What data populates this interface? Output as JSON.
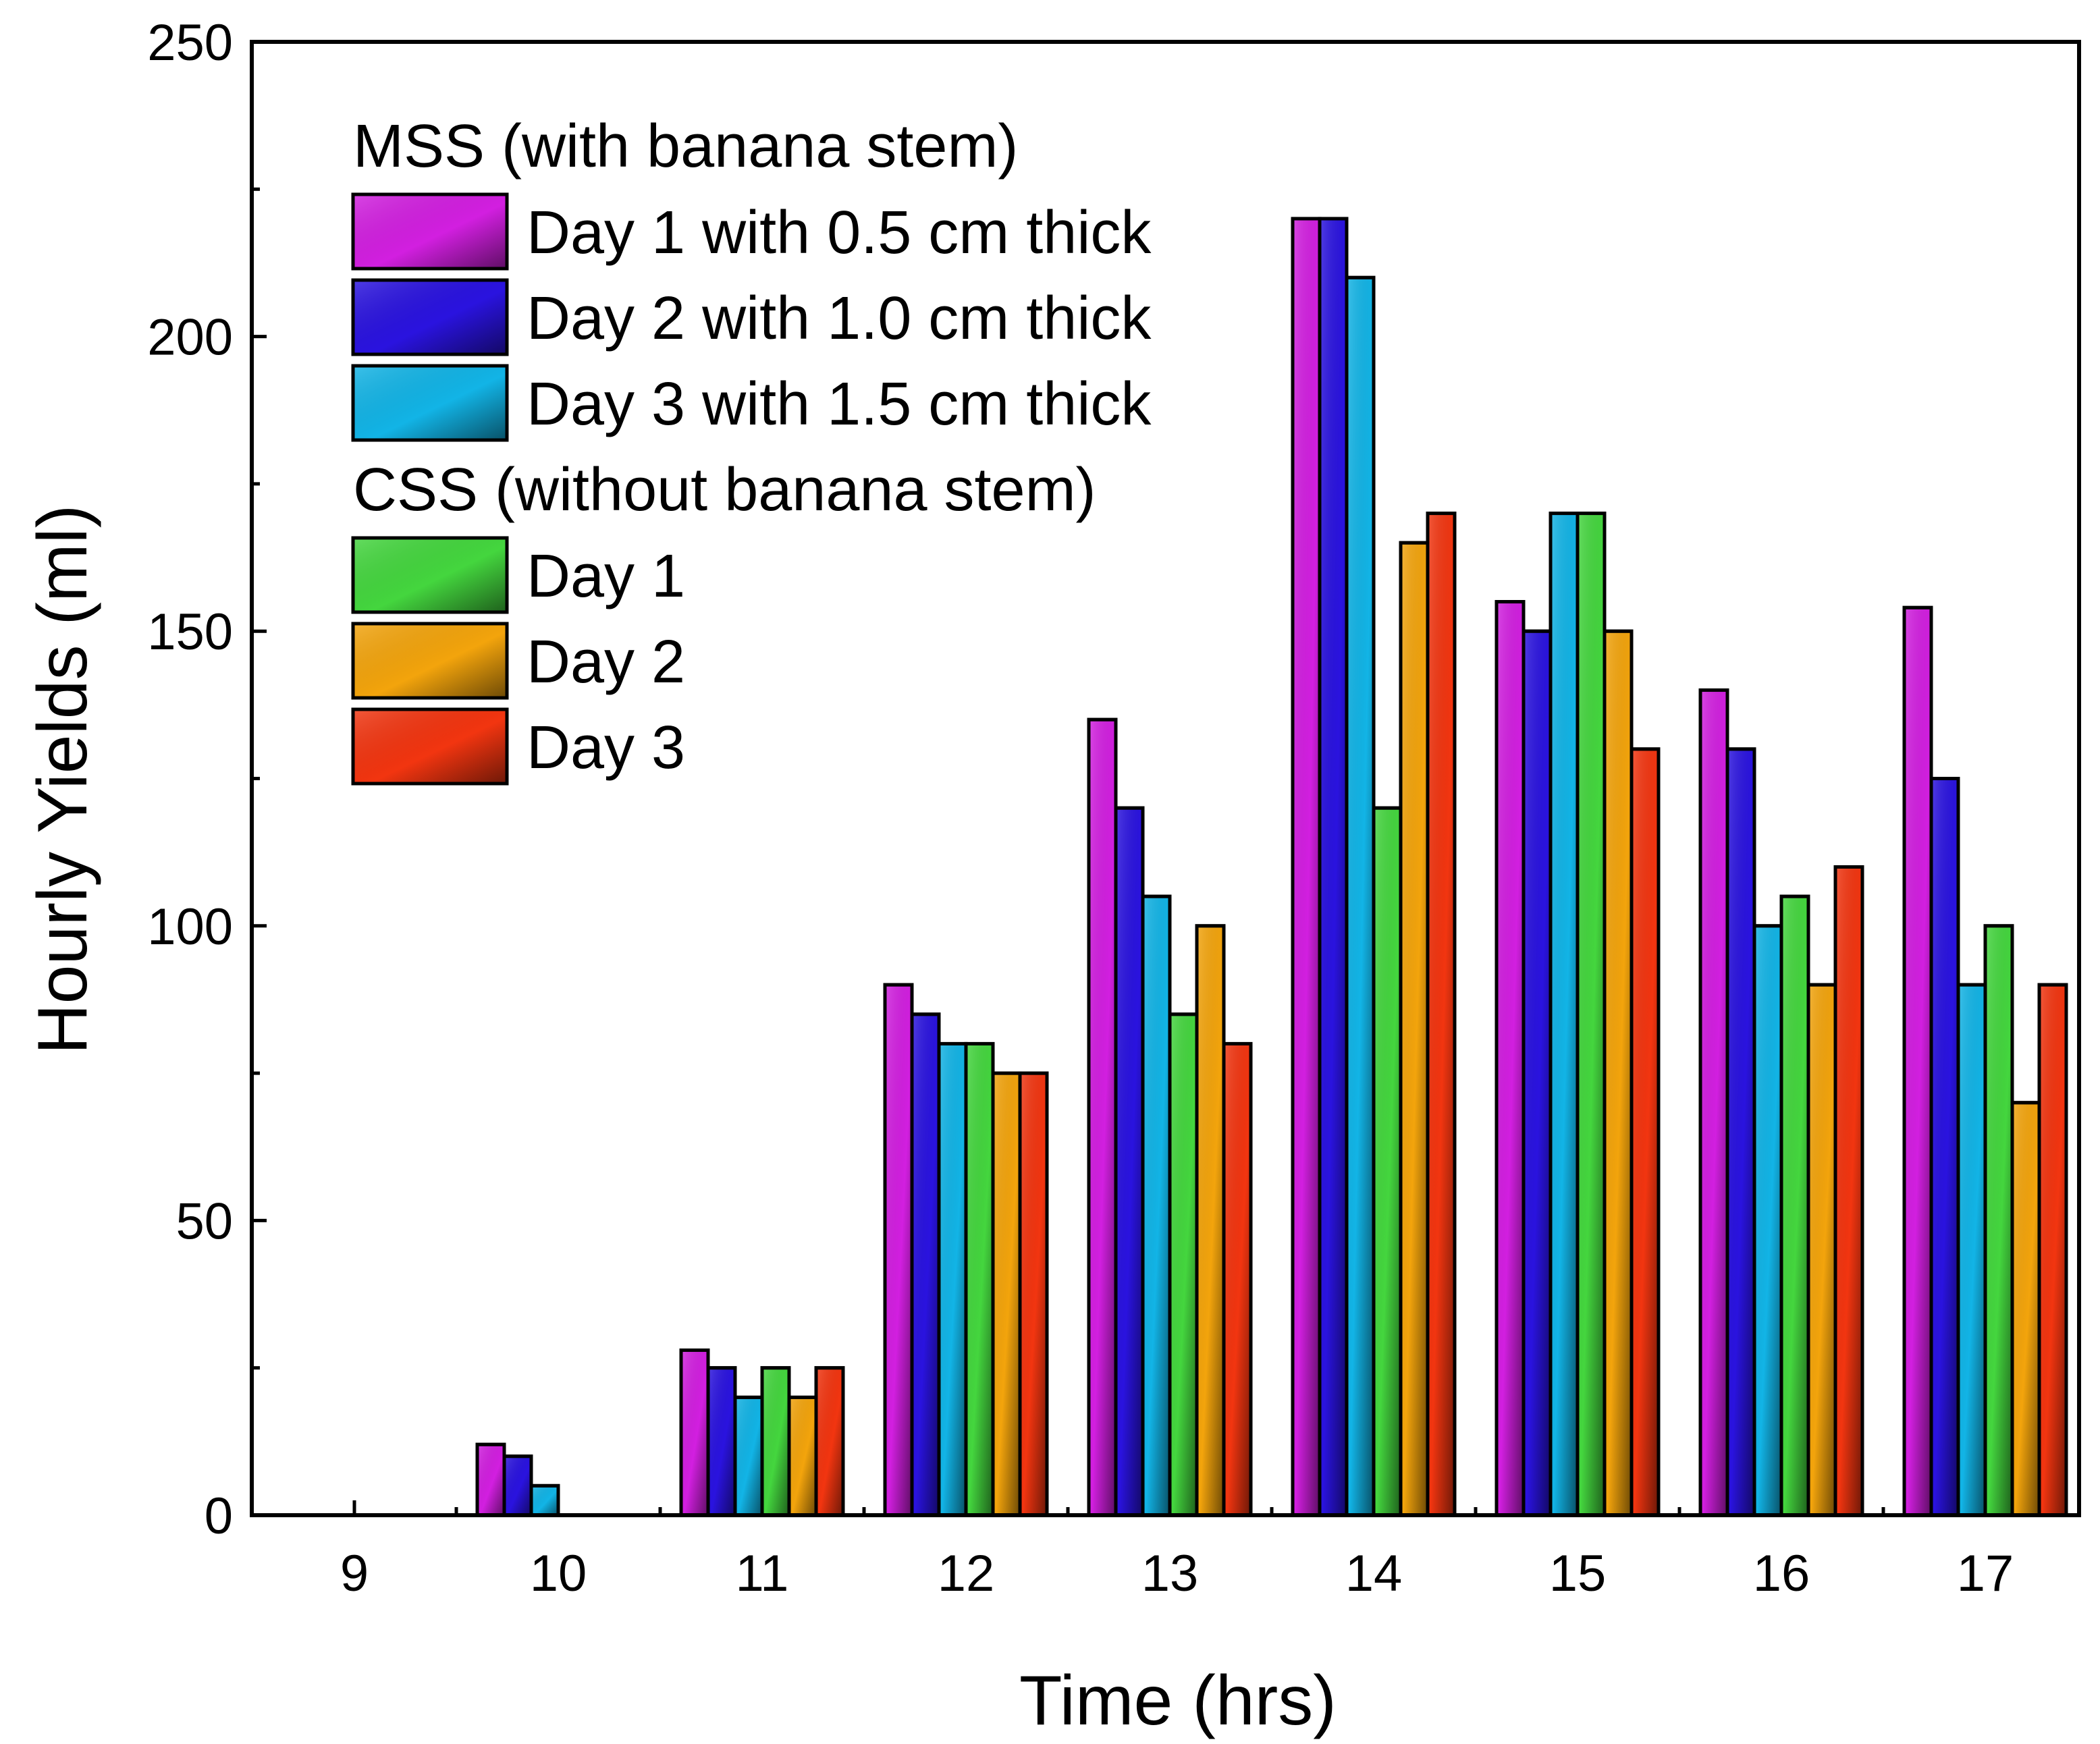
{
  "chart_data": {
    "type": "bar",
    "xlabel": "Time (hrs)",
    "ylabel": "Hourly Yields (ml)",
    "ylim": [
      0,
      250
    ],
    "yticks": [
      0,
      50,
      100,
      150,
      200,
      250
    ],
    "categories": [
      "9",
      "10",
      "11",
      "12",
      "13",
      "14",
      "15",
      "16",
      "17"
    ],
    "legend_groups": [
      {
        "title": "MSS (with banana stem)",
        "series_indices": [
          0,
          1,
          2
        ]
      },
      {
        "title": "CSS (without banana stem)",
        "series_indices": [
          3,
          4,
          5
        ]
      }
    ],
    "series": [
      {
        "name": "Day 1 with 0.5 cm thick",
        "color": "#d21fe0",
        "values": [
          0,
          12,
          28,
          90,
          135,
          220,
          155,
          140,
          154
        ]
      },
      {
        "name": "Day 2 with 1.0 cm thick",
        "color": "#2a13df",
        "values": [
          0,
          10,
          25,
          85,
          120,
          220,
          150,
          130,
          125
        ]
      },
      {
        "name": "Day 3 with 1.5 cm thick",
        "color": "#12b4e6",
        "values": [
          0,
          5,
          20,
          80,
          105,
          210,
          170,
          100,
          90
        ]
      },
      {
        "name": "Day 1",
        "color": "#44d63e",
        "values": [
          0,
          0,
          25,
          80,
          85,
          120,
          170,
          105,
          100
        ]
      },
      {
        "name": "Day 2",
        "color": "#f3a40c",
        "values": [
          0,
          0,
          20,
          75,
          100,
          165,
          150,
          90,
          70
        ]
      },
      {
        "name": "Day 3",
        "color": "#f23510",
        "values": [
          0,
          0,
          25,
          75,
          80,
          170,
          130,
          110,
          90
        ]
      }
    ]
  }
}
